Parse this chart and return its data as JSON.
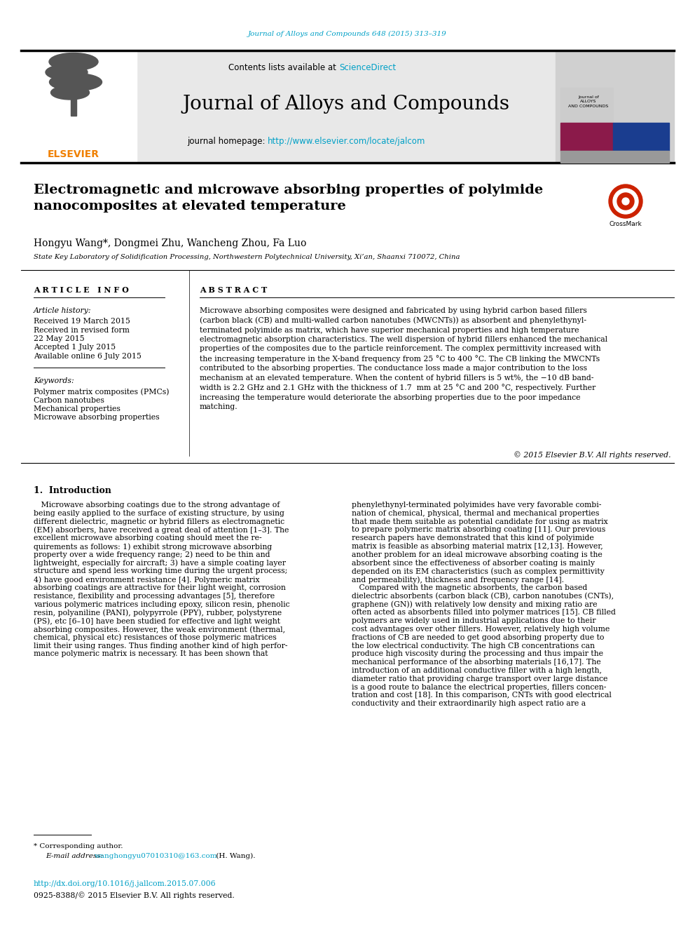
{
  "page_bg": "#ffffff",
  "journal_ref_text": "Journal of Alloys and Compounds 648 (2015) 313–319",
  "journal_ref_color": "#00a0c6",
  "header_bg": "#e8e8e8",
  "header_journal_name": "Journal of Alloys and Compounds",
  "header_contents_text": "Contents lists available at ",
  "header_sciencedirect": "ScienceDirect",
  "header_homepage_text": "journal homepage: ",
  "header_url": "http://www.elsevier.com/locate/jalcom",
  "url_color": "#00a0c6",
  "elsevier_color": "#f08000",
  "article_title": "Electromagnetic and microwave absorbing properties of polyimide\nnanocomposites at elevated temperature",
  "authors": "Hongyu Wang*, Dongmei Zhu, Wancheng Zhou, Fa Luo",
  "affiliation": "State Key Laboratory of Solidification Processing, Northwestern Polytechnical University, Xi’an, Shaanxi 710072, China",
  "article_info_header": "A R T I C L E   I N F O",
  "abstract_header": "A B S T R A C T",
  "article_history_label": "Article history:",
  "received_text": "Received 19 March 2015",
  "revised_text": "Received in revised form",
  "revised_date": "22 May 2015",
  "accepted_text": "Accepted 1 July 2015",
  "online_text": "Available online 6 July 2015",
  "keywords_label": "Keywords:",
  "keywords": [
    "Polymer matrix composites (PMCs)",
    "Carbon nanotubes",
    "Mechanical properties",
    "Microwave absorbing properties"
  ],
  "abstract_text": "Microwave absorbing composites were designed and fabricated by using hybrid carbon based fillers\n(carbon black (CB) and multi-walled carbon nanotubes (MWCNTs)) as absorbent and phenylethynyl-\nterminated polyimide as matrix, which have superior mechanical properties and high temperature\nelectromagnetic absorption characteristics. The well dispersion of hybrid fillers enhanced the mechanical\nproperties of the composites due to the particle reinforcement. The complex permittivity increased with\nthe increasing temperature in the X-band frequency from 25 °C to 400 °C. The CB linking the MWCNTs\ncontributed to the absorbing properties. The conductance loss made a major contribution to the loss\nmechanism at an elevated temperature. When the content of hybrid fillers is 5 wt%, the −10 dB band-\nwidth is 2.2 GHz and 2.1 GHz with the thickness of 1.7  mm at 25 °C and 200 °C, respectively. Further\nincreasing the temperature would deteriorate the absorbing properties due to the poor impedance\nmatching.",
  "copyright_text": "© 2015 Elsevier B.V. All rights reserved.",
  "intro_header": "1.  Introduction",
  "intro_col1_lines": [
    "   Microwave absorbing coatings due to the strong advantage of",
    "being easily applied to the surface of existing structure, by using",
    "different dielectric, magnetic or hybrid fillers as electromagnetic",
    "(EM) absorbers, have received a great deal of attention [1–3]. The",
    "excellent microwave absorbing coating should meet the re-",
    "quirements as follows: 1) exhibit strong microwave absorbing",
    "property over a wide frequency range; 2) need to be thin and",
    "lightweight, especially for aircraft; 3) have a simple coating layer",
    "structure and spend less working time during the urgent process;",
    "4) have good environment resistance [4]. Polymeric matrix",
    "absorbing coatings are attractive for their light weight, corrosion",
    "resistance, flexibility and processing advantages [5], therefore",
    "various polymeric matrices including epoxy, silicon resin, phenolic",
    "resin, polyaniline (PANI), polypyrrole (PPY), rubber, polystyrene",
    "(PS), etc [6–10] have been studied for effective and light weight",
    "absorbing composites. However, the weak environment (thermal,",
    "chemical, physical etc) resistances of those polymeric matrices",
    "limit their using ranges. Thus finding another kind of high perfor-",
    "mance polymeric matrix is necessary. It has been shown that"
  ],
  "intro_col2_lines": [
    "phenylethynyl-terminated polyimides have very favorable combi-",
    "nation of chemical, physical, thermal and mechanical properties",
    "that made them suitable as potential candidate for using as matrix",
    "to prepare polymeric matrix absorbing coating [11]. Our previous",
    "research papers have demonstrated that this kind of polyimide",
    "matrix is feasible as absorbing material matrix [12,13]. However,",
    "another problem for an ideal microwave absorbing coating is the",
    "absorbent since the effectiveness of absorber coating is mainly",
    "depended on its EM characteristics (such as complex permittivity",
    "and permeability), thickness and frequency range [14].",
    "   Compared with the magnetic absorbents, the carbon based",
    "dielectric absorbents (carbon black (CB), carbon nanotubes (CNTs),",
    "graphene (GN)) with relatively low density and mixing ratio are",
    "often acted as absorbents filled into polymer matrices [15]. CB filled",
    "polymers are widely used in industrial applications due to their",
    "cost advantages over other fillers. However, relatively high volume",
    "fractions of CB are needed to get good absorbing property due to",
    "the low electrical conductivity. The high CB concentrations can",
    "produce high viscosity during the processing and thus impair the",
    "mechanical performance of the absorbing materials [16,17]. The",
    "introduction of an additional conductive filler with a high length,",
    "diameter ratio that providing charge transport over large distance",
    "is a good route to balance the electrical properties, fillers concen-",
    "tration and cost [18]. In this comparison, CNTs with good electrical",
    "conductivity and their extraordinarily high aspect ratio are a"
  ],
  "footnote_corresponding": "* Corresponding author.",
  "footnote_email_label": "E-mail address: ",
  "footnote_email": "wanghongyu07010310@163.com",
  "footnote_email_suffix": " (H. Wang).",
  "doi_text": "http://dx.doi.org/10.1016/j.jallcom.2015.07.006",
  "issn_text": "0925-8388/© 2015 Elsevier B.V. All rights reserved."
}
